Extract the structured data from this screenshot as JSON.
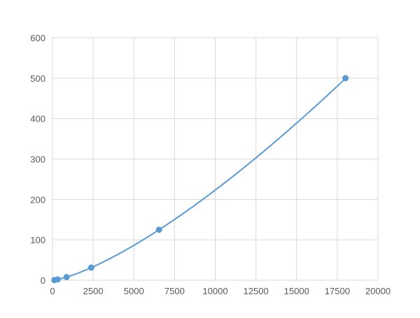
{
  "chart_data": {
    "type": "scatter",
    "title": "",
    "xlabel": "",
    "ylabel": "",
    "xlim": [
      0,
      20000
    ],
    "ylim": [
      0,
      600
    ],
    "xticks": [
      0,
      2500,
      5000,
      7500,
      10000,
      12500,
      15000,
      17500,
      20000
    ],
    "yticks": [
      0,
      100,
      200,
      300,
      400,
      500,
      600
    ],
    "grid": true,
    "legend": "none",
    "color": "#5b9bd5",
    "trendline": "smooth",
    "series": [
      {
        "x": [
          114,
          315,
          866,
          2380,
          6545,
          18000
        ],
        "y": [
          0.49,
          1.95,
          7.8,
          31.25,
          125,
          500
        ]
      }
    ]
  }
}
